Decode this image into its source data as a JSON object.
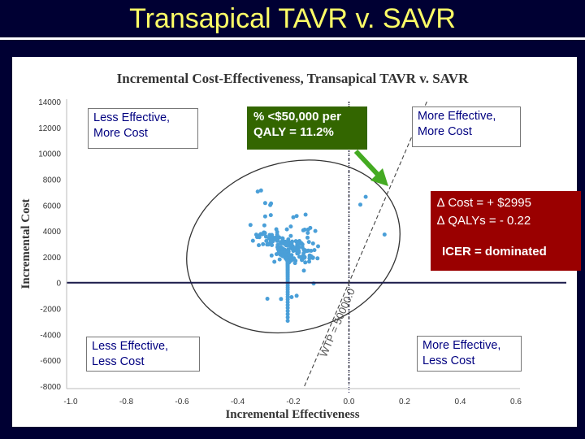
{
  "slide_title": "Transapical TAVR v. SAVR",
  "annotations": {
    "quad_ul": [
      "Less Effective,",
      "More Cost"
    ],
    "quad_ur": [
      "More Effective,",
      "More Cost"
    ],
    "quad_ll": [
      "Less Effective,",
      "Less Cost"
    ],
    "quad_lr": [
      "More Effective,",
      "Less Cost"
    ],
    "wtp_box": [
      "% <$50,000 per",
      "QALY = 11.2%"
    ],
    "result_lines": [
      "∆ Cost = + $2995",
      "∆ QALYs = - 0.22"
    ],
    "icer": "ICER = dominated",
    "wtp_line_label": "WTP = 50000.0"
  },
  "colors": {
    "points": "#4a9fd8",
    "wtp_box": "#336600",
    "result_box": "#9a0000",
    "axis": "#1a1a4a",
    "title": "#ffff66"
  },
  "chart_data": {
    "type": "scatter",
    "title": "Incremental Cost-Effectiveness, Transapical TAVR v. SAVR",
    "xlabel": "Incremental Effectiveness",
    "ylabel": "Incremental Cost",
    "xlim": [
      -1.0,
      0.6
    ],
    "ylim": [
      -8000,
      14000
    ],
    "x_ticks": [
      "-1.0",
      "-0.8",
      "-0.6",
      "-0.4",
      "-0.2",
      "0.0",
      "0.2",
      "0.4",
      "0.6"
    ],
    "y_ticks": [
      "14000",
      "12000",
      "10000",
      "8000",
      "6000",
      "4000",
      "2000",
      "0",
      "-2000",
      "-4000",
      "-6000",
      "-8000"
    ],
    "center": {
      "x": -0.22,
      "y": 2995
    },
    "ellipse": {
      "center_x": -0.2,
      "center_y": 2800,
      "semi_x": 0.39,
      "semi_y": 6500,
      "tilt_deg": -17
    },
    "wtp_line": {
      "slope": 50000
    },
    "points": [
      [
        -0.209,
        3617
      ],
      [
        -0.209,
        4342
      ],
      [
        -0.293,
        -1240
      ],
      [
        -0.2,
        5057
      ],
      [
        -0.191,
        2519
      ],
      [
        0.041,
        6036
      ],
      [
        -0.206,
        -1117
      ],
      [
        -0.316,
        7130
      ],
      [
        -0.161,
        1911
      ],
      [
        -0.268,
        1617
      ],
      [
        0.128,
        3722
      ],
      [
        0.06,
        6637
      ],
      [
        -0.124,
        2521
      ],
      [
        -0.281,
        5223
      ],
      [
        -0.304,
        4432
      ],
      [
        -0.328,
        7048
      ],
      [
        -0.311,
        3751
      ],
      [
        -0.215,
        1576
      ],
      [
        -0.159,
        1986
      ],
      [
        -0.215,
        2113
      ],
      [
        -0.283,
        6007
      ],
      [
        -0.169,
        1785
      ],
      [
        -0.156,
        5262
      ],
      [
        -0.301,
        5124
      ],
      [
        -0.159,
        1957
      ],
      [
        -0.333,
        3719
      ],
      [
        -0.255,
        2582
      ],
      [
        -0.186,
        2930
      ],
      [
        -0.188,
        5159
      ],
      [
        -0.164,
        4051
      ],
      [
        -0.178,
        3217
      ],
      [
        -0.261,
        4130
      ],
      [
        -0.28,
        6121
      ],
      [
        -0.127,
        -64
      ],
      [
        -0.188,
        -1011
      ],
      [
        -0.194,
        1519
      ],
      [
        -0.278,
        2101
      ],
      [
        -0.273,
        3493
      ],
      [
        -0.223,
        4124
      ],
      [
        -0.324,
        2902
      ],
      [
        -0.244,
        -1264
      ],
      [
        -0.111,
        2812
      ],
      [
        -0.139,
        4232
      ],
      [
        -0.301,
        6153
      ],
      [
        -0.149,
        3484
      ],
      [
        -0.211,
        1983
      ],
      [
        -0.26,
        2209
      ],
      [
        -0.289,
        3006
      ],
      [
        -0.289,
        2954
      ],
      [
        -0.192,
        1701
      ],
      [
        -0.2,
        2458
      ],
      [
        -0.157,
        1569
      ],
      [
        -0.297,
        3224
      ],
      [
        -0.159,
        4102
      ],
      [
        -0.211,
        1949
      ],
      [
        -0.169,
        1751
      ],
      [
        -0.234,
        3069
      ],
      [
        -0.136,
        2049
      ],
      [
        -0.217,
        2398
      ],
      [
        -0.278,
        3493
      ],
      [
        -0.17,
        3017
      ],
      [
        -0.147,
        4107
      ],
      [
        -0.162,
        934
      ],
      [
        -0.191,
        3211
      ],
      [
        -0.206,
        2640
      ],
      [
        -0.144,
        3154
      ],
      [
        -0.204,
        3183
      ],
      [
        -0.167,
        2954
      ],
      [
        -0.172,
        3068
      ],
      [
        -0.218,
        3346
      ],
      [
        -0.294,
        2950
      ],
      [
        -0.309,
        2975
      ],
      [
        -0.207,
        1837
      ],
      [
        -0.277,
        2904
      ],
      [
        -0.209,
        2807
      ],
      [
        -0.202,
        2818
      ],
      [
        -0.255,
        3232
      ],
      [
        -0.189,
        2739
      ],
      [
        -0.187,
        3117
      ],
      [
        -0.189,
        3181
      ],
      [
        -0.257,
        2749
      ],
      [
        -0.174,
        2998
      ],
      [
        -0.245,
        3070
      ],
      [
        -0.223,
        2878
      ],
      [
        -0.227,
        3154
      ],
      [
        -0.213,
        2879
      ],
      [
        -0.215,
        3117
      ],
      [
        -0.238,
        3041
      ],
      [
        -0.206,
        3020
      ],
      [
        -0.224,
        3005
      ],
      [
        -0.306,
        3883
      ],
      [
        -0.239,
        3434
      ],
      [
        -0.193,
        2583
      ],
      [
        -0.121,
        4000
      ],
      [
        -0.354,
        4466
      ],
      [
        -0.113,
        1883
      ],
      [
        -0.258,
        3716
      ],
      [
        -0.129,
        3031
      ],
      [
        -0.345,
        3244
      ],
      [
        -0.222,
        2458
      ],
      [
        -0.249,
        1799
      ],
      [
        -0.148,
        3849
      ],
      [
        -0.141,
        2106
      ],
      [
        -0.258,
        3920
      ],
      [
        -0.212,
        2138
      ],
      [
        -0.162,
        2543
      ],
      [
        -0.287,
        3431
      ],
      [
        -0.146,
        2476
      ],
      [
        -0.33,
        3526
      ],
      [
        -0.183,
        2358
      ],
      [
        -0.251,
        3509
      ],
      [
        -0.136,
        2467
      ],
      [
        -0.129,
        1935
      ],
      [
        -0.303,
        3860
      ],
      [
        -0.238,
        3412
      ],
      [
        -0.218,
        2586
      ],
      [
        -0.19,
        2574
      ],
      [
        -0.322,
        3652
      ],
      [
        -0.196,
        2516
      ],
      [
        -0.263,
        3483
      ],
      [
        -0.152,
        2449
      ],
      [
        -0.322,
        3520
      ],
      [
        -0.226,
        2895
      ],
      [
        -0.158,
        2512
      ],
      [
        -0.282,
        3394
      ],
      [
        -0.221,
        2935
      ],
      [
        -0.221,
        2915
      ],
      [
        -0.26,
        3293
      ],
      [
        -0.18,
        2728
      ],
      [
        -0.274,
        3195
      ],
      [
        -0.167,
        2725
      ],
      [
        -0.213,
        3052
      ],
      [
        -0.219,
        2950
      ],
      [
        -0.232,
        3150
      ],
      [
        -0.211,
        3024
      ],
      [
        -0.216,
        2976
      ],
      [
        -0.22,
        2994
      ],
      [
        -0.22,
        2985
      ],
      [
        -0.22,
        2985
      ],
      [
        -0.22,
        2994
      ],
      [
        -0.206,
        2840
      ],
      [
        -0.13,
        1908
      ],
      [
        -0.255,
        3447
      ],
      [
        -0.141,
        2050
      ],
      [
        -0.181,
        2477
      ],
      [
        -0.23,
        3167
      ],
      [
        -0.277,
        3689
      ],
      [
        -0.227,
        3097
      ],
      [
        -0.163,
        2269
      ],
      [
        -0.24,
        3201
      ],
      [
        -0.199,
        2643
      ],
      [
        -0.258,
        3410
      ],
      [
        -0.185,
        2531
      ],
      [
        -0.285,
        3690
      ],
      [
        -0.232,
        3006
      ],
      [
        -0.225,
        2948
      ],
      [
        -0.197,
        2541
      ],
      [
        -0.264,
        3375
      ],
      [
        -0.18,
        2424
      ],
      [
        -0.19,
        2490
      ],
      [
        -0.18,
        2336
      ],
      [
        -0.142,
        1878
      ],
      [
        -0.302,
        3829
      ],
      [
        -0.244,
        3082
      ],
      [
        -0.258,
        3234
      ],
      [
        -0.305,
        3793
      ],
      [
        -0.184,
        2277
      ],
      [
        -0.166,
        2049
      ],
      [
        -0.186,
        2257
      ],
      [
        -0.298,
        3562
      ],
      [
        -0.317,
        3761
      ],
      [
        -0.275,
        3257
      ],
      [
        -0.282,
        3337
      ],
      [
        -0.143,
        1631
      ],
      [
        -0.256,
        2921
      ],
      [
        -0.178,
        2000
      ],
      [
        -0.281,
        3195
      ],
      [
        -0.246,
        2770
      ],
      [
        -0.245,
        2747
      ],
      [
        -0.239,
        2663
      ],
      [
        -0.244,
        2708
      ],
      [
        -0.232,
        2563
      ],
      [
        -0.233,
        2564
      ],
      [
        -0.239,
        2621
      ],
      [
        -0.218,
        2377
      ],
      [
        -0.251,
        2725
      ],
      [
        -0.236,
        2551
      ],
      [
        -0.255,
        2738
      ],
      [
        -0.225,
        2401
      ],
      [
        -0.279,
        2974
      ],
      [
        -0.221,
        2337
      ],
      [
        -0.255,
        2679
      ],
      [
        -0.233,
        2440
      ],
      [
        -0.222,
        2314
      ],
      [
        -0.206,
        2136
      ],
      [
        -0.225,
        2316
      ],
      [
        -0.243,
        2490
      ],
      [
        -0.233,
        2380
      ],
      [
        -0.232,
        2357
      ],
      [
        -0.219,
        2207
      ],
      [
        -0.242,
        2431
      ],
      [
        -0.252,
        2531
      ],
      [
        -0.228,
        2283
      ],
      [
        -0.21,
        2098
      ],
      [
        -0.243,
        2404
      ],
      [
        -0.232,
        2281
      ],
      [
        -0.211,
        2066
      ],
      [
        -0.237,
        2315
      ],
      [
        -0.243,
        2363
      ],
      [
        -0.241,
        2329
      ],
      [
        -0.216,
        2075
      ],
      [
        -0.198,
        1881
      ],
      [
        -0.24,
        2286
      ],
      [
        -0.224,
        2116
      ],
      [
        -0.213,
        2004
      ],
      [
        -0.252,
        2371
      ],
      [
        -0.205,
        1904
      ],
      [
        -0.209,
        1934
      ],
      [
        -0.236,
        2175
      ],
      [
        -0.216,
        1974
      ],
      [
        -0.211,
        1913
      ],
      [
        -0.232,
        2103
      ],
      [
        -0.239,
        2149
      ],
      [
        -0.201,
        1794
      ],
      [
        -0.236,
        2103
      ],
      [
        -0.213,
        1880
      ],
      [
        -0.247,
        2170
      ],
      [
        -0.225,
        1959
      ],
      [
        -0.24,
        2085
      ],
      [
        -0.237,
        2043
      ],
      [
        -0.223,
        1913
      ],
      [
        -0.22,
        1873
      ],
      [
        -0.21,
        1770
      ],
      [
        -0.218,
        1827
      ],
      [
        -0.226,
        1889
      ],
      [
        -0.228,
        1890
      ],
      [
        -0.208,
        1712
      ],
      [
        -0.224,
        1841
      ],
      [
        -0.222,
        1804
      ],
      [
        -0.224,
        1812
      ],
      [
        -0.22,
        1760
      ],
      [
        -0.221,
        1759
      ],
      [
        -0.224,
        1773
      ],
      [
        -0.221,
        1727
      ],
      [
        -0.22,
        1704
      ],
      [
        -0.221,
        1698
      ],
      [
        -0.22,
        1673
      ],
      [
        -0.22,
        1660
      ],
      [
        -0.22,
        1637
      ],
      [
        -0.22,
        1619
      ],
      [
        -0.22,
        1592
      ],
      [
        -0.22,
        1568
      ],
      [
        -0.22,
        1540
      ],
      [
        -0.22,
        1505
      ],
      [
        -0.22,
        1469
      ],
      [
        -0.22,
        1429
      ],
      [
        -0.22,
        1383
      ],
      [
        -0.22,
        1333
      ],
      [
        -0.22,
        1280
      ],
      [
        -0.22,
        1221
      ],
      [
        -0.22,
        1158
      ],
      [
        -0.22,
        1089
      ],
      [
        -0.22,
        1016
      ],
      [
        -0.22,
        936
      ],
      [
        -0.22,
        851
      ],
      [
        -0.22,
        759
      ],
      [
        -0.22,
        661
      ],
      [
        -0.22,
        557
      ],
      [
        -0.22,
        445
      ],
      [
        -0.22,
        326
      ],
      [
        -0.22,
        200
      ],
      [
        -0.22,
        66
      ],
      [
        -0.22,
        -75
      ],
      [
        -0.22,
        -224
      ],
      [
        -0.22,
        -382
      ],
      [
        -0.22,
        -548
      ],
      [
        -0.22,
        -722
      ],
      [
        -0.22,
        -905
      ],
      [
        -0.22,
        -1096
      ],
      [
        -0.22,
        -1296
      ],
      [
        -0.22,
        -1505
      ],
      [
        -0.22,
        -1723
      ],
      [
        -0.22,
        -1949
      ],
      [
        -0.22,
        -2185
      ],
      [
        -0.22,
        -2430
      ],
      [
        -0.22,
        -2684
      ],
      [
        -0.22,
        -2947
      ]
    ]
  }
}
